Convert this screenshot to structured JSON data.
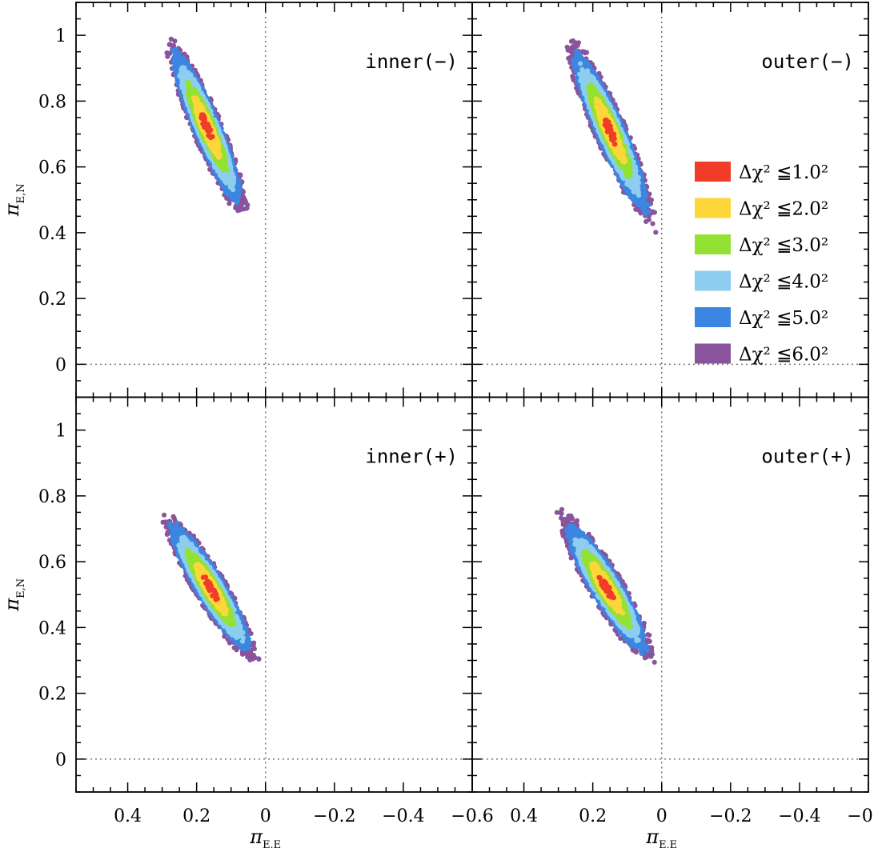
{
  "chart_data": {
    "type": "scatter",
    "description_units": "microlens parallax (pi_E,E , pi_E,N)",
    "xlim": [
      0.55,
      -0.6
    ],
    "ylim": [
      -0.1,
      1.1
    ],
    "xticks": [
      0.4,
      0.2,
      0,
      -0.2,
      -0.4,
      -0.6
    ],
    "xtick_labels": [
      "0.4",
      "0.2",
      "0",
      "−0.2",
      "−0.4",
      "−0.6"
    ],
    "yticks": [
      0,
      0.2,
      0.4,
      0.6,
      0.8,
      1
    ],
    "ytick_labels": [
      "0",
      "0.2",
      "0.4",
      "0.6",
      "0.8",
      "1"
    ],
    "xlabel": {
      "symbol": "π",
      "sub": "E,E"
    },
    "ylabel": {
      "symbol": "π",
      "sub": "E,N"
    },
    "reference_lines": {
      "x": 0,
      "y": 0,
      "style": "dotted"
    },
    "legend": [
      {
        "label": "Δχ² ≦",
        "value": "1.0²",
        "color": "#f03c28"
      },
      {
        "label": "Δχ² ≦",
        "value": "2.0²",
        "color": "#fdd73a"
      },
      {
        "label": "Δχ² ≦",
        "value": "3.0²",
        "color": "#93e233"
      },
      {
        "label": "Δχ² ≦",
        "value": "4.0²",
        "color": "#8dcdf0"
      },
      {
        "label": "Δχ² ≦",
        "value": "5.0²",
        "color": "#3b86e0"
      },
      {
        "label": "Δχ² ≦",
        "value": "6.0²",
        "color": "#8a549c"
      }
    ],
    "panels": [
      {
        "name": "inner(−)",
        "label": "inner(−)",
        "center": [
          0.17,
          0.72
        ],
        "orientation_deg": -68,
        "sigma_major": 0.095,
        "sigma_minor": 0.015,
        "level_radii": [
          0.5,
          1.0,
          1.45,
          2.0,
          2.45,
          2.95
        ]
      },
      {
        "name": "outer(−)",
        "label": "outer(−)",
        "center": [
          0.15,
          0.71
        ],
        "orientation_deg": -67,
        "sigma_major": 0.1,
        "sigma_minor": 0.016,
        "level_radii": [
          0.5,
          1.0,
          1.45,
          2.0,
          2.45,
          2.95
        ]
      },
      {
        "name": "inner(+)",
        "label": "inner(+)",
        "center": [
          0.16,
          0.52
        ],
        "orientation_deg": -60,
        "sigma_major": 0.085,
        "sigma_minor": 0.016,
        "level_radii": [
          0.5,
          1.0,
          1.45,
          2.0,
          2.45,
          2.95
        ]
      },
      {
        "name": "outer(+)",
        "label": "outer(+)",
        "center": [
          0.16,
          0.52
        ],
        "orientation_deg": -60,
        "sigma_major": 0.085,
        "sigma_minor": 0.017,
        "level_radii": [
          0.5,
          1.0,
          1.45,
          2.0,
          2.45,
          2.95
        ]
      }
    ]
  }
}
